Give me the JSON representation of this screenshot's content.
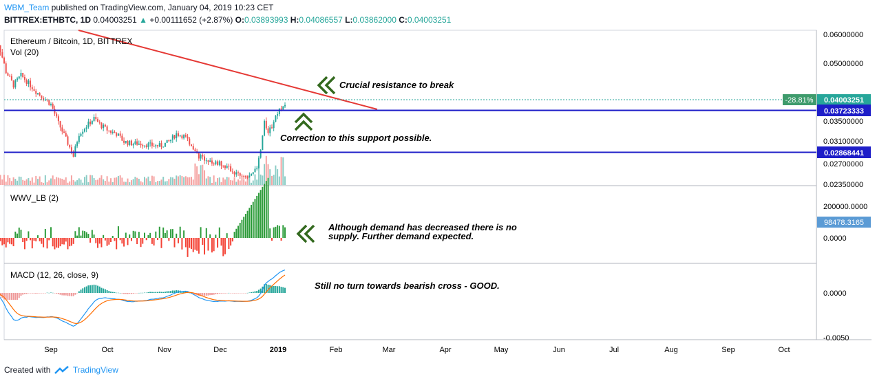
{
  "header": {
    "author": "WBM_Team",
    "published_text": " published on TradingView.com, January 04, 2019 10:23 CET",
    "symbol": "BITTREX:ETHBTC, 1D",
    "last": "0.04003251",
    "change": "+0.00111652 (+2.87%)",
    "o_label": "O:",
    "o": "0.03893993",
    "h_label": "H:",
    "h": "0.04086557",
    "l_label": "L:",
    "l": "0.03862000",
    "c_label": "C:",
    "c": "0.04003251"
  },
  "footer": {
    "created_with": "Created with",
    "brand": "TradingView"
  },
  "colors": {
    "up": "#26a69a",
    "down": "#ef5350",
    "up_vol": "#8ccdc6",
    "down_vol": "#f5a3a2",
    "wwv_up": "#2e9c3b",
    "wwv_down": "#f44336",
    "macd": "#2196f3",
    "signal": "#ff6d00",
    "trendline": "#e53935",
    "support": "#1e1ec8",
    "arrow": "#33691e"
  },
  "chart_data": [
    {
      "type": "candlestick",
      "title": "Ethereum / Bitcoin, 1D, BITTREX",
      "volume_label": "Vol (20)",
      "price_ticks": [
        "0.06000000",
        "0.05000000",
        "0.03500000",
        "0.03100000",
        "0.02700000",
        "0.02350000"
      ],
      "x_ticks": [
        "Sep",
        "Oct",
        "Nov",
        "Dec",
        "2019",
        "Feb",
        "Mar",
        "Apr",
        "May",
        "Jun",
        "Jul",
        "Aug",
        "Sep",
        "Oct"
      ],
      "support_levels": [
        "0.03723333",
        "0.02868441"
      ],
      "last_price": "0.04003251",
      "last_change": "-28.81%",
      "price_path": [
        [
          "2018-08-01",
          0.058
        ],
        [
          "2018-08-04",
          0.056
        ],
        [
          "2018-08-08",
          0.048
        ],
        [
          "2018-08-12",
          0.0445
        ],
        [
          "2018-08-16",
          0.047
        ],
        [
          "2018-08-20",
          0.045
        ],
        [
          "2018-08-24",
          0.043
        ],
        [
          "2018-08-28",
          0.0415
        ],
        [
          "2018-09-01",
          0.04
        ],
        [
          "2018-09-05",
          0.036
        ],
        [
          "2018-09-09",
          0.033
        ],
        [
          "2018-09-13",
          0.03
        ],
        [
          "2018-09-16",
          0.034
        ],
        [
          "2018-09-20",
          0.0355
        ],
        [
          "2018-09-24",
          0.037
        ],
        [
          "2018-09-28",
          0.0355
        ],
        [
          "2018-10-02",
          0.0345
        ],
        [
          "2018-10-06",
          0.034
        ],
        [
          "2018-10-10",
          0.0325
        ],
        [
          "2018-10-14",
          0.0322
        ],
        [
          "2018-10-18",
          0.0322
        ],
        [
          "2018-10-22",
          0.032
        ],
        [
          "2018-10-26",
          0.0318
        ],
        [
          "2018-10-30",
          0.0318
        ],
        [
          "2018-11-03",
          0.0325
        ],
        [
          "2018-11-07",
          0.034
        ],
        [
          "2018-11-11",
          0.0335
        ],
        [
          "2018-11-15",
          0.032
        ],
        [
          "2018-11-19",
          0.03
        ],
        [
          "2018-11-23",
          0.0295
        ],
        [
          "2018-11-27",
          0.029
        ],
        [
          "2018-12-01",
          0.0287
        ],
        [
          "2018-12-05",
          0.028
        ],
        [
          "2018-12-09",
          0.0272
        ],
        [
          "2018-12-13",
          0.0265
        ],
        [
          "2018-12-17",
          0.0268
        ],
        [
          "2018-12-20",
          0.028
        ],
        [
          "2018-12-22",
          0.031
        ],
        [
          "2018-12-24",
          0.036
        ],
        [
          "2018-12-26",
          0.0345
        ],
        [
          "2018-12-28",
          0.0355
        ],
        [
          "2018-12-30",
          0.0375
        ],
        [
          "2019-01-01",
          0.039
        ],
        [
          "2019-01-04",
          0.04
        ]
      ]
    },
    {
      "type": "bar",
      "title": "WWV_LB (2)",
      "y_ticks": [
        "200000.0000",
        "0.0000"
      ],
      "last_value": "98478.3165"
    },
    {
      "type": "line",
      "title": "MACD (12, 26, close, 9)",
      "y_ticks": [
        "0.0000",
        "-0.0050"
      ],
      "series": [
        {
          "name": "MACD"
        },
        {
          "name": "Signal"
        }
      ]
    }
  ],
  "annotations": {
    "resistance": "Crucial resistance to break",
    "support": "Correction to this support possible.",
    "demand_line1": "Although demand has decreased there is no",
    "demand_line2": "supply. Further demand expected.",
    "macd_note": "Still no turn towards bearish cross - GOOD."
  }
}
